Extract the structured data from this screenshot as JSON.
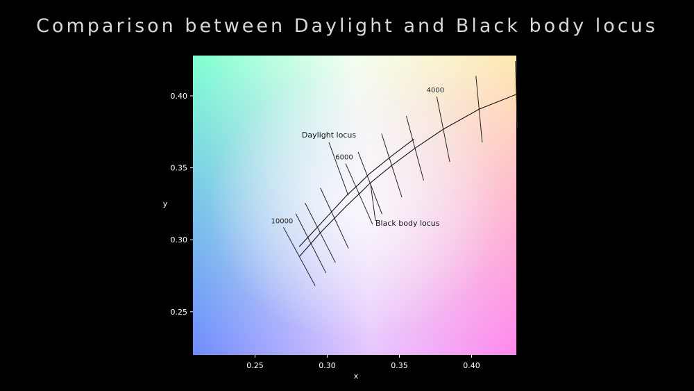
{
  "slide": {
    "title": "Comparison between Daylight and Black body locus"
  },
  "chart_data": {
    "type": "line",
    "title": "",
    "xlabel": "x",
    "ylabel": "y",
    "xlim": [
      0.207,
      0.431
    ],
    "ylim": [
      0.22,
      0.428
    ],
    "xticks": [
      0.25,
      0.3,
      0.35,
      0.4
    ],
    "yticks": [
      0.25,
      0.3,
      0.35,
      0.4
    ],
    "xtick_labels": [
      "0.25",
      "0.30",
      "0.35",
      "0.40"
    ],
    "ytick_labels": [
      "0.25",
      "0.30",
      "0.35",
      "0.40"
    ],
    "background": "CIE 1931 chromaticity colour field",
    "series": [
      {
        "name": "Black body locus",
        "color": "#111111",
        "x": [
          0.2807,
          0.2952,
          0.3135,
          0.3221,
          0.3297,
          0.3447,
          0.3608,
          0.3804,
          0.4052,
          0.431
        ],
        "y": [
          0.2883,
          0.3048,
          0.3237,
          0.3318,
          0.3394,
          0.3516,
          0.3636,
          0.3768,
          0.3907,
          0.401
        ]
      },
      {
        "name": "Daylight locus",
        "color": "#111111",
        "x": [
          0.2806,
          0.2951,
          0.3138,
          0.3221,
          0.329,
          0.3451,
          0.3601
        ],
        "y": [
          0.2952,
          0.3108,
          0.3311,
          0.3388,
          0.3456,
          0.3586,
          0.37
        ]
      }
    ],
    "isotherms": [
      {
        "x": 0.2807,
        "y": 0.2883,
        "label": "10000"
      },
      {
        "x": 0.2887,
        "y": 0.2975,
        "label": ""
      },
      {
        "x": 0.2952,
        "y": 0.3048,
        "label": ""
      },
      {
        "x": 0.305,
        "y": 0.315,
        "label": ""
      },
      {
        "x": 0.3221,
        "y": 0.3318,
        "label": "6000"
      },
      {
        "x": 0.3297,
        "y": 0.3394,
        "label": ""
      },
      {
        "x": 0.3447,
        "y": 0.3516,
        "label": ""
      },
      {
        "x": 0.3608,
        "y": 0.3636,
        "label": ""
      },
      {
        "x": 0.3804,
        "y": 0.3768,
        "label": "4000"
      },
      {
        "x": 0.4052,
        "y": 0.3907,
        "label": ""
      },
      {
        "x": 0.431,
        "y": 0.401,
        "label": ""
      }
    ],
    "annotations": [
      {
        "text": "Daylight locus",
        "point_x": 0.3145,
        "point_y": 0.331
      },
      {
        "text": "Black body locus",
        "point_x": 0.33,
        "point_y": 0.339
      }
    ]
  }
}
